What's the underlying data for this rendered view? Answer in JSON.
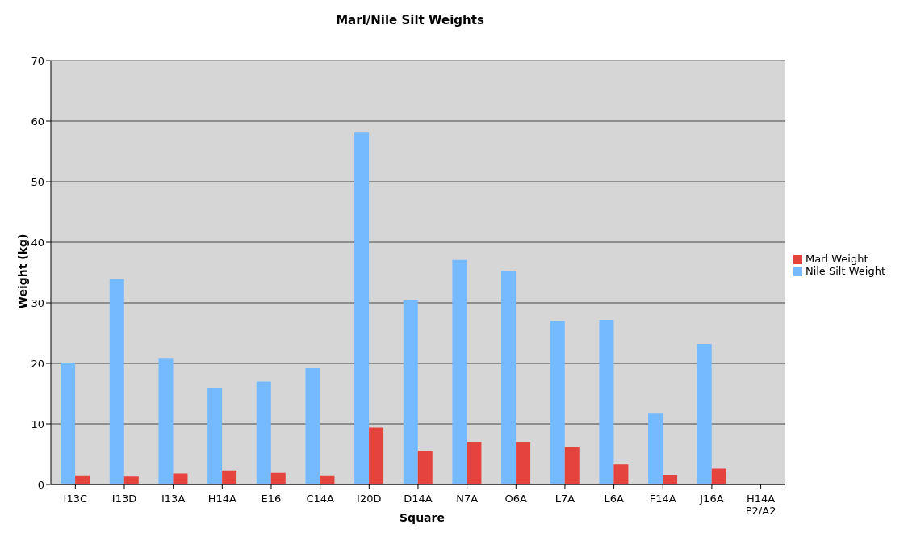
{
  "chart_data": {
    "type": "bar",
    "title": "Marl/Nile Silt Weights",
    "xlabel": "Square",
    "ylabel": "Weight (kg)",
    "categories": [
      "I13C",
      "I13D",
      "I13A",
      "H14A",
      "E16",
      "C14A",
      "I20D",
      "D14A",
      "N7A",
      "O6A",
      "L7A",
      "L6A",
      "F14A",
      "J16A",
      "H14A P2/A2"
    ],
    "series": [
      {
        "name": "Nile Silt Weight",
        "color": "#75b9ff",
        "values": [
          20.1,
          33.9,
          20.9,
          16.0,
          17.0,
          19.2,
          58.1,
          30.4,
          37.1,
          35.3,
          27.0,
          27.2,
          11.7,
          23.2,
          0
        ]
      },
      {
        "name": "Marl Weight",
        "color": "#e5433e",
        "values": [
          1.5,
          1.3,
          1.8,
          2.3,
          1.9,
          1.5,
          9.4,
          5.6,
          7.0,
          7.0,
          6.2,
          3.3,
          1.6,
          2.6,
          0
        ]
      }
    ],
    "ylim": [
      0,
      70
    ],
    "yticks": [
      0,
      10,
      20,
      30,
      40,
      50,
      60,
      70
    ],
    "grid": "y",
    "legend": "right"
  }
}
